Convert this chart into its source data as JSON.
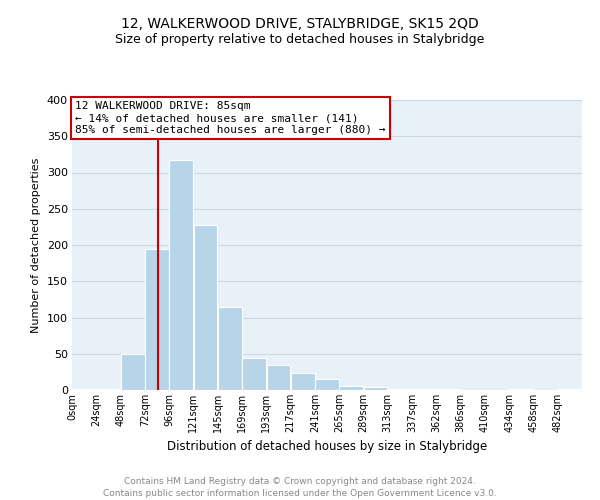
{
  "title": "12, WALKERWOOD DRIVE, STALYBRIDGE, SK15 2QD",
  "subtitle": "Size of property relative to detached houses in Stalybridge",
  "xlabel": "Distribution of detached houses by size in Stalybridge",
  "ylabel": "Number of detached properties",
  "bar_edges": [
    0,
    24,
    48,
    72,
    96,
    120,
    144,
    168,
    192,
    216,
    240,
    264,
    288,
    312,
    336,
    360,
    384,
    408,
    432,
    456,
    480,
    504
  ],
  "bar_heights": [
    2,
    2,
    50,
    195,
    317,
    228,
    115,
    44,
    35,
    24,
    15,
    5,
    4,
    2,
    1,
    1,
    0,
    0,
    1,
    0,
    1
  ],
  "tick_labels": [
    "0sqm",
    "24sqm",
    "48sqm",
    "72sqm",
    "96sqm",
    "121sqm",
    "145sqm",
    "169sqm",
    "193sqm",
    "217sqm",
    "241sqm",
    "265sqm",
    "289sqm",
    "313sqm",
    "337sqm",
    "362sqm",
    "386sqm",
    "410sqm",
    "434sqm",
    "458sqm",
    "482sqm"
  ],
  "bar_color": "#b8d4e8",
  "bar_edge_color": "#ffffff",
  "property_line_x": 85,
  "property_line_color": "#cc0000",
  "annotation_text": "12 WALKERWOOD DRIVE: 85sqm\n← 14% of detached houses are smaller (141)\n85% of semi-detached houses are larger (880) →",
  "annotation_box_color": "#ffffff",
  "annotation_box_edge": "#cc0000",
  "ylim": [
    0,
    400
  ],
  "yticks": [
    0,
    50,
    100,
    150,
    200,
    250,
    300,
    350,
    400
  ],
  "grid_color": "#cdd8e3",
  "bg_color": "#e8f0f8",
  "footer_line1": "Contains HM Land Registry data © Crown copyright and database right 2024.",
  "footer_line2": "Contains public sector information licensed under the Open Government Licence v3.0.",
  "title_fontsize": 10,
  "subtitle_fontsize": 9,
  "xlabel_fontsize": 8.5,
  "ylabel_fontsize": 8,
  "annotation_fontsize": 8,
  "footer_fontsize": 6.5
}
